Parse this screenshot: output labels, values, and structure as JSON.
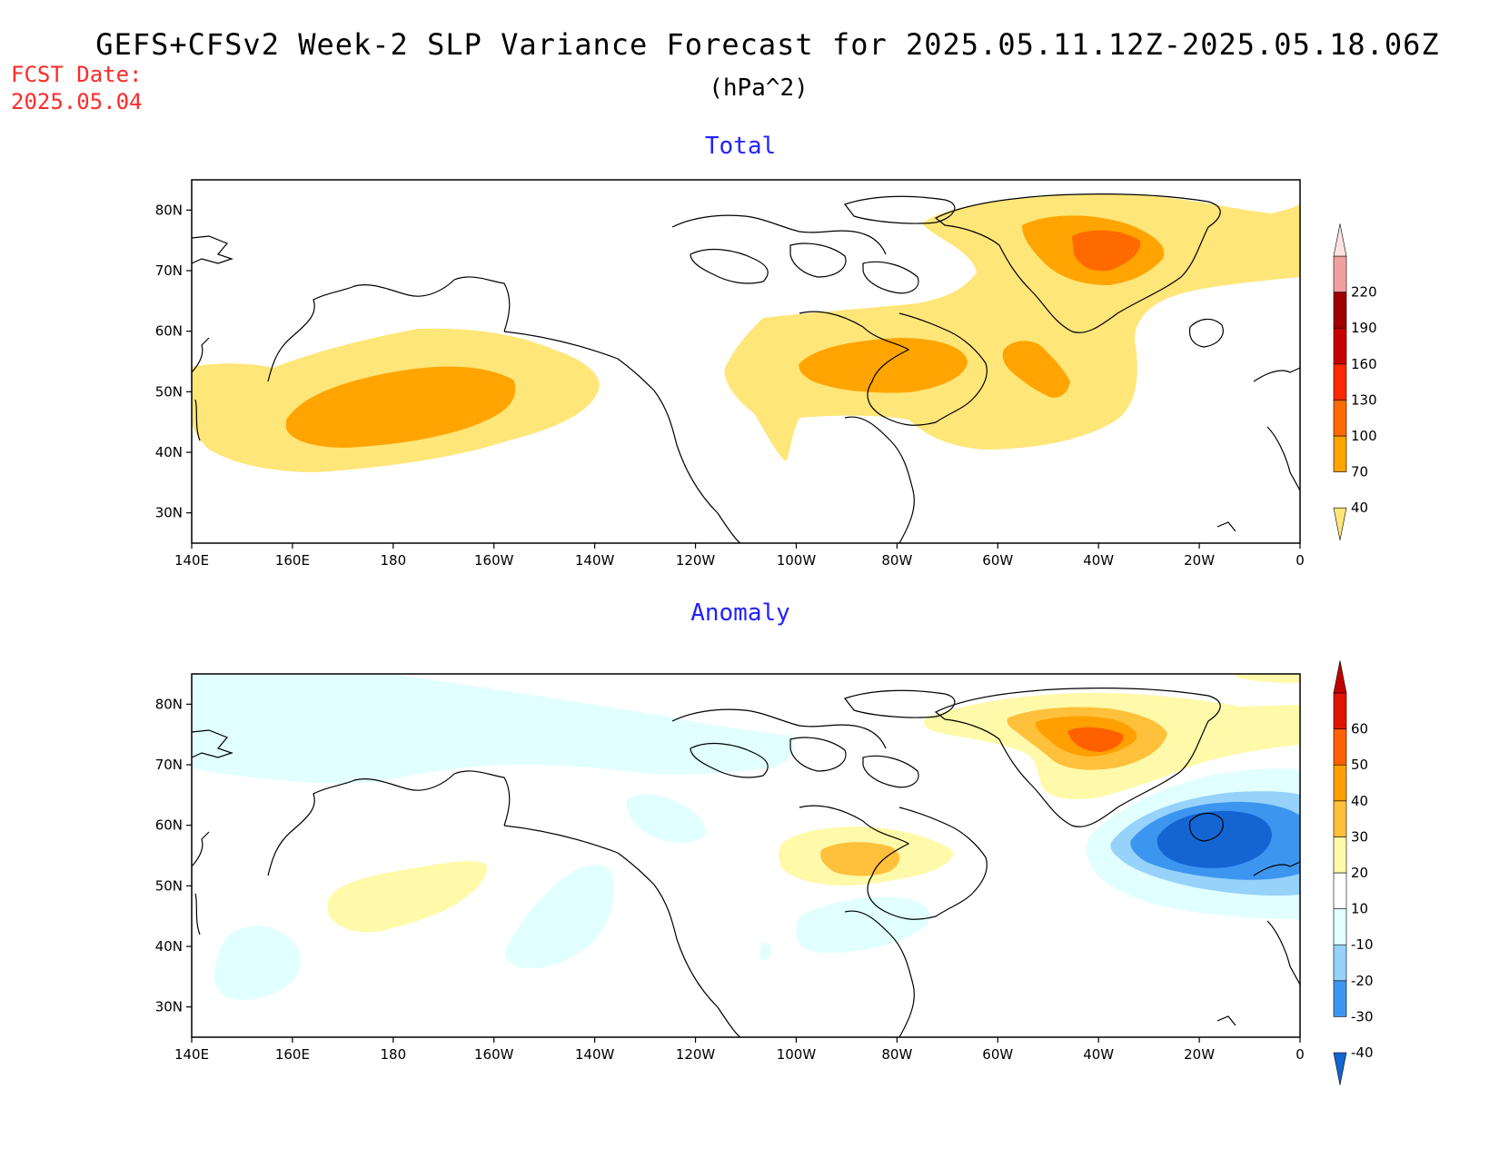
{
  "header": {
    "title": "GEFS+CFSv2 Week-2 SLP Variance Forecast for 2025.05.11.12Z-2025.05.18.06Z",
    "units": "(hPa^2)",
    "fcst_label": "FCST Date:",
    "fcst_date": "2025.05.04"
  },
  "map": {
    "x_ticks": [
      "140E",
      "160E",
      "180",
      "160W",
      "140W",
      "120W",
      "100W",
      "80W",
      "60W",
      "40W",
      "20W",
      "0"
    ],
    "y_ticks": [
      "30N",
      "40N",
      "50N",
      "60N",
      "70N",
      "80N"
    ],
    "lon_range_deg_east": [
      140,
      360
    ],
    "lat_range": [
      25,
      85
    ]
  },
  "panels": [
    {
      "title": "Total",
      "colorbar": {
        "levels": [
          "40",
          "70",
          "100",
          "130",
          "160",
          "190",
          "220"
        ],
        "colors": [
          "#ffe679",
          "#ffa400",
          "#ff6a00",
          "#ff2800",
          "#c80000",
          "#a00000",
          "#f0a0a0",
          "#fde0e0"
        ]
      }
    },
    {
      "title": "Anomaly",
      "colorbar": {
        "levels": [
          "-40",
          "-30",
          "-20",
          "-10",
          "10",
          "20",
          "30",
          "40",
          "50",
          "60"
        ],
        "colors": [
          "#1464d2",
          "#3c96f0",
          "#96d2fa",
          "#e1ffff",
          "#ffffff",
          "#fffaaa",
          "#ffc03c",
          "#ffa000",
          "#ff6000",
          "#e11400",
          "#c00000"
        ]
      }
    }
  ]
}
